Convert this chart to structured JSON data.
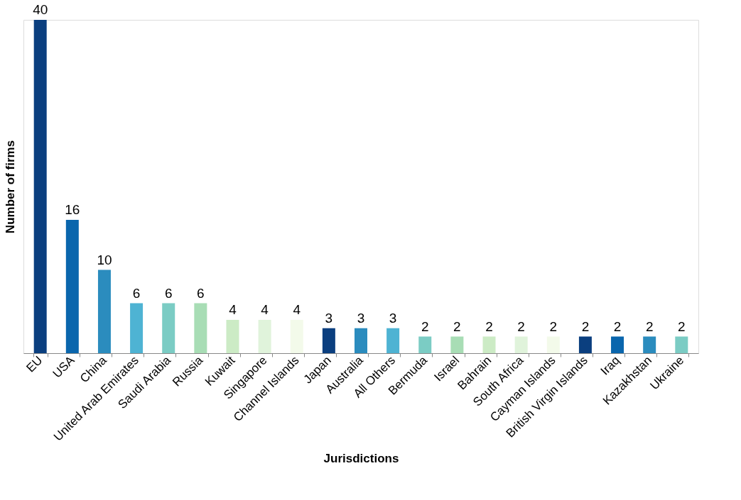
{
  "chart_data": {
    "type": "bar",
    "xlabel": "Jurisdictions",
    "ylabel": "Number of firms",
    "categories": [
      "EU",
      "USA",
      "China",
      "United Arab Emirates",
      "Saudi Arabia",
      "Russia",
      "Kuwait",
      "Singapore",
      "Channel Islands",
      "Japan",
      "Australia",
      "All Others",
      "Bermuda",
      "Israel",
      "Bahrain",
      "South Africa",
      "Cayman Islands",
      "British Virgin Islands",
      "Iraq",
      "Kazakhstan",
      "Ukraine"
    ],
    "values": [
      40,
      16,
      10,
      6,
      6,
      6,
      4,
      4,
      4,
      3,
      3,
      3,
      2,
      2,
      2,
      2,
      2,
      2,
      2,
      2,
      2
    ],
    "colors": [
      "#0b3f7f",
      "#0a66ad",
      "#2b8cbe",
      "#4eb3d3",
      "#7bccc4",
      "#a8ddb5",
      "#ccebc5",
      "#e0f3db",
      "#f3faea",
      "#0b3f7f",
      "#2b8cbe",
      "#4eb3d3",
      "#7bccc4",
      "#a8ddb5",
      "#ccebc5",
      "#e0f3db",
      "#f3faea",
      "#0b3f7f",
      "#0a66ad",
      "#2b8cbe",
      "#7bccc4"
    ],
    "data_labels": true,
    "grid": false,
    "legend": false
  }
}
